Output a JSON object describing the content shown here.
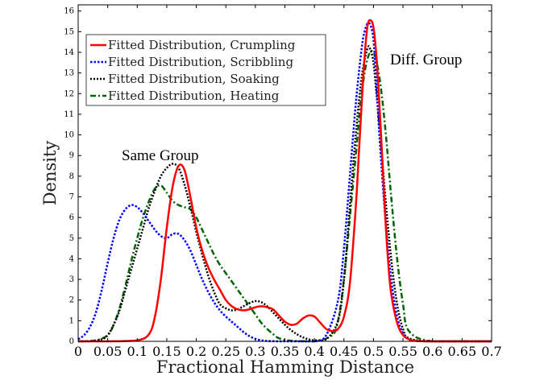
{
  "chart_data": {
    "type": "line",
    "xlabel": "Fractional Hamming Distance",
    "ylabel": "Density",
    "xlim": [
      0,
      0.7
    ],
    "ylim": [
      0,
      16.3
    ],
    "x_ticks": [
      0,
      0.05,
      0.1,
      0.15,
      0.2,
      0.25,
      0.3,
      0.35,
      0.4,
      0.45,
      0.5,
      0.55,
      0.6,
      0.65,
      0.7
    ],
    "x_tick_labels": [
      "0",
      "0.05",
      "0.1",
      "0.15",
      "0.2",
      "0.25",
      "0.3",
      "0.35",
      "0.4",
      "0.45",
      "0.5",
      "0.55",
      "0.6",
      "0.65",
      "0.7"
    ],
    "y_ticks": [
      0,
      1,
      2,
      3,
      4,
      5,
      6,
      7,
      8,
      9,
      10,
      11,
      12,
      13,
      14,
      15,
      16
    ],
    "y_tick_labels": [
      "0",
      "1",
      "2",
      "3",
      "4",
      "5",
      "6",
      "7",
      "8",
      "9",
      "10",
      "11",
      "12",
      "13",
      "14",
      "15",
      "16"
    ],
    "legend_position": "top-left",
    "annotations": [
      {
        "text": "Same Group",
        "x": 0.075,
        "y": 9.0
      },
      {
        "text": "Diff. Group",
        "x": 0.525,
        "y": 13.8
      }
    ],
    "series": [
      {
        "name": "Fitted Distribution, Crumpling",
        "color": "#ff0000",
        "dash": "solid",
        "x": [
          0,
          0.05,
          0.1,
          0.12,
          0.13,
          0.14,
          0.15,
          0.16,
          0.17,
          0.18,
          0.19,
          0.2,
          0.21,
          0.22,
          0.23,
          0.24,
          0.25,
          0.26,
          0.27,
          0.28,
          0.29,
          0.3,
          0.31,
          0.32,
          0.33,
          0.34,
          0.35,
          0.36,
          0.37,
          0.38,
          0.39,
          0.4,
          0.41,
          0.42,
          0.43,
          0.44,
          0.45,
          0.46,
          0.47,
          0.475,
          0.48,
          0.485,
          0.49,
          0.495,
          0.5,
          0.505,
          0.51,
          0.515,
          0.52,
          0.525,
          0.53,
          0.54,
          0.55,
          0.56,
          0.57,
          0.6,
          0.7
        ],
        "y": [
          0,
          0,
          0.05,
          0.35,
          1.2,
          3.0,
          5.5,
          7.5,
          8.5,
          8.3,
          7.0,
          5.5,
          4.4,
          3.6,
          3.0,
          2.5,
          2.0,
          1.7,
          1.55,
          1.5,
          1.55,
          1.65,
          1.7,
          1.65,
          1.55,
          1.25,
          0.95,
          0.8,
          0.85,
          1.1,
          1.25,
          1.2,
          0.9,
          0.6,
          0.5,
          0.6,
          1.2,
          2.8,
          6.5,
          9.0,
          11.5,
          13.8,
          15.3,
          15.55,
          15.2,
          13.8,
          11.5,
          8.8,
          6.0,
          3.8,
          2.3,
          0.9,
          0.3,
          0.1,
          0.03,
          0,
          0
        ]
      },
      {
        "name": "Fitted Distribution, Scribbling",
        "color": "#0000ff",
        "dash": "dotted",
        "x": [
          0,
          0.01,
          0.02,
          0.03,
          0.04,
          0.05,
          0.06,
          0.07,
          0.08,
          0.09,
          0.1,
          0.11,
          0.12,
          0.13,
          0.14,
          0.15,
          0.16,
          0.17,
          0.18,
          0.19,
          0.2,
          0.21,
          0.22,
          0.23,
          0.24,
          0.25,
          0.26,
          0.27,
          0.28,
          0.29,
          0.3,
          0.31,
          0.32,
          0.34,
          0.36,
          0.4,
          0.42,
          0.44,
          0.45,
          0.46,
          0.47,
          0.48,
          0.485,
          0.49,
          0.495,
          0.5,
          0.505,
          0.51,
          0.52,
          0.53,
          0.54,
          0.55,
          0.56,
          0.57,
          0.6,
          0.7
        ],
        "y": [
          0.1,
          0.3,
          0.7,
          1.4,
          2.5,
          3.8,
          5.0,
          5.9,
          6.4,
          6.6,
          6.5,
          6.2,
          5.8,
          5.4,
          5.1,
          5.0,
          5.2,
          5.2,
          4.9,
          4.4,
          3.7,
          3.0,
          2.4,
          1.9,
          1.5,
          1.2,
          0.95,
          0.7,
          0.45,
          0.25,
          0.12,
          0.05,
          0.02,
          0,
          0,
          0,
          0.3,
          2.0,
          4.5,
          8.0,
          11.5,
          14.2,
          15.0,
          15.4,
          15.3,
          14.6,
          12.5,
          10.0,
          6.0,
          3.0,
          1.2,
          0.4,
          0.1,
          0.03,
          0,
          0
        ]
      },
      {
        "name": "Fitted Distribution, Soaking",
        "color": "#000000",
        "dash": "dotted",
        "x": [
          0,
          0.02,
          0.04,
          0.05,
          0.06,
          0.07,
          0.08,
          0.09,
          0.1,
          0.11,
          0.12,
          0.13,
          0.14,
          0.15,
          0.16,
          0.17,
          0.18,
          0.19,
          0.2,
          0.21,
          0.22,
          0.23,
          0.24,
          0.25,
          0.26,
          0.27,
          0.28,
          0.29,
          0.3,
          0.31,
          0.32,
          0.33,
          0.34,
          0.35,
          0.36,
          0.37,
          0.38,
          0.39,
          0.4,
          0.42,
          0.44,
          0.45,
          0.46,
          0.47,
          0.48,
          0.49,
          0.495,
          0.5,
          0.505,
          0.51,
          0.52,
          0.53,
          0.54,
          0.55,
          0.56,
          0.6,
          0.7
        ],
        "y": [
          0,
          0,
          0.1,
          0.3,
          0.8,
          1.5,
          2.5,
          3.5,
          4.5,
          5.5,
          6.5,
          7.3,
          8.0,
          8.4,
          8.6,
          8.4,
          7.6,
          6.5,
          5.3,
          4.2,
          3.2,
          2.4,
          1.8,
          1.6,
          1.5,
          1.55,
          1.7,
          1.85,
          1.95,
          1.9,
          1.7,
          1.4,
          1.1,
          0.8,
          0.55,
          0.35,
          0.2,
          0.1,
          0.05,
          0.1,
          1.0,
          3.0,
          6.5,
          10.0,
          12.8,
          14.2,
          14.1,
          13.5,
          12.0,
          10.5,
          7.0,
          4.0,
          1.8,
          0.6,
          0.15,
          0,
          0
        ]
      },
      {
        "name": "Fitted Distribution, Heating",
        "color": "#006400",
        "dash": "dashdot",
        "x": [
          0,
          0.03,
          0.05,
          0.06,
          0.07,
          0.08,
          0.09,
          0.1,
          0.11,
          0.12,
          0.13,
          0.14,
          0.15,
          0.16,
          0.17,
          0.18,
          0.19,
          0.2,
          0.21,
          0.22,
          0.23,
          0.24,
          0.25,
          0.26,
          0.27,
          0.28,
          0.29,
          0.3,
          0.31,
          0.32,
          0.33,
          0.34,
          0.36,
          0.4,
          0.43,
          0.44,
          0.45,
          0.46,
          0.47,
          0.48,
          0.49,
          0.5,
          0.51,
          0.52,
          0.53,
          0.54,
          0.55,
          0.56,
          0.6,
          0.7
        ],
        "y": [
          0,
          0.05,
          0.3,
          0.8,
          1.6,
          2.7,
          3.9,
          5.0,
          6.0,
          6.8,
          7.4,
          7.55,
          7.2,
          6.8,
          6.6,
          6.5,
          6.4,
          6.0,
          5.4,
          4.8,
          4.2,
          3.7,
          3.3,
          2.9,
          2.5,
          2.1,
          1.7,
          1.3,
          0.9,
          0.6,
          0.35,
          0.15,
          0.03,
          0,
          0.3,
          1.0,
          3.0,
          6.0,
          9.0,
          12.0,
          13.7,
          14.0,
          12.8,
          10.3,
          7.0,
          4.0,
          1.8,
          0.5,
          0,
          0
        ]
      }
    ]
  }
}
